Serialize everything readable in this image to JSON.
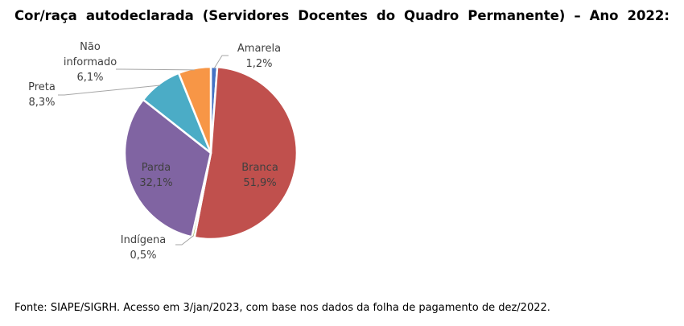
{
  "chart_data": {
    "type": "pie",
    "title": "Cor/raça autodeclarada (Servidores Docentes do Quadro Permanente) – Ano 2022:",
    "slices": [
      {
        "name": "Amarela",
        "value": 1.2,
        "label": "1,2%",
        "color": "#4472c4"
      },
      {
        "name": "Branca",
        "value": 51.9,
        "label": "51,9%",
        "color": "#c0504d"
      },
      {
        "name": "Indígena",
        "value": 0.5,
        "label": "0,5%",
        "color": "#9bbb59"
      },
      {
        "name": "Parda",
        "value": 32.1,
        "label": "32,1%",
        "color": "#8064a2"
      },
      {
        "name": "Preta",
        "value": 8.3,
        "label": "8,3%",
        "color": "#4bacc6"
      },
      {
        "name": "Não informado",
        "value": 6.1,
        "label": "6,1%",
        "color": "#f79646"
      }
    ],
    "legend": "none",
    "data_labels": true
  },
  "source_note": "Fonte: SIAPE/SIGRH. Acesso em 3/jan/2023, com base nos dados da folha de pagamento de dez/2022."
}
